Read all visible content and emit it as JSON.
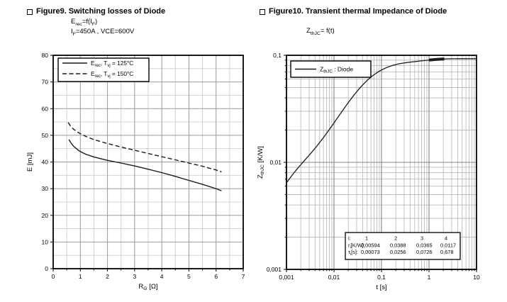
{
  "page": {
    "background": "#ffffff",
    "text_color": "#000000"
  },
  "figures": [
    {
      "title": "Figure9. Switching losses of Diode",
      "subtitles": [
        "E~rec~=f(I~F~)",
        "I~F~=450A , VCE=600V"
      ],
      "chart_data": {
        "type": "line",
        "xscale": "linear",
        "yscale": "linear",
        "xlabel": "R~G~ [Ω]",
        "ylabel": "E [mJ]",
        "xlim": [
          0,
          7
        ],
        "ylim": [
          0,
          80
        ],
        "x_major_step": 1,
        "x_minor_step": 0.5,
        "y_major_step": 10,
        "y_minor_step": 5,
        "x_tick_labels": [
          "0",
          "1",
          "2",
          "3",
          "4",
          "5",
          "6",
          "7"
        ],
        "y_tick_labels": [
          "0",
          "10",
          "20",
          "30",
          "40",
          "50",
          "60",
          "70",
          "80"
        ],
        "grid": "on",
        "legend_position": "top-left",
        "series": [
          {
            "name": "E~rec~, T~vj~ = 125°C",
            "line_style": "solid",
            "color": "#1a1a1a",
            "points": [
              [
                0.58,
                48.4
              ],
              [
                0.65,
                47.2
              ],
              [
                0.75,
                45.9
              ],
              [
                0.9,
                44.6
              ],
              [
                1.0,
                43.9
              ],
              [
                1.2,
                42.9
              ],
              [
                1.5,
                41.9
              ],
              [
                2.0,
                40.6
              ],
              [
                2.5,
                39.6
              ],
              [
                3.0,
                38.5
              ],
              [
                3.5,
                37.3
              ],
              [
                4.0,
                36.0
              ],
              [
                4.5,
                34.6
              ],
              [
                5.0,
                33.1
              ],
              [
                5.5,
                31.6
              ],
              [
                6.0,
                30.0
              ],
              [
                6.2,
                29.2
              ]
            ]
          },
          {
            "name": "E~rec~, T~vj~ = 150°C",
            "line_style": "dashed",
            "color": "#1a1a1a",
            "points": [
              [
                0.55,
                54.8
              ],
              [
                0.65,
                53.3
              ],
              [
                0.75,
                52.3
              ],
              [
                0.9,
                51.2
              ],
              [
                1.0,
                50.6
              ],
              [
                1.2,
                49.6
              ],
              [
                1.5,
                48.4
              ],
              [
                2.0,
                46.9
              ],
              [
                2.5,
                45.6
              ],
              [
                3.0,
                44.4
              ],
              [
                3.5,
                43.2
              ],
              [
                4.0,
                42.0
              ],
              [
                4.5,
                40.8
              ],
              [
                5.0,
                39.6
              ],
              [
                5.5,
                38.4
              ],
              [
                6.0,
                37.0
              ],
              [
                6.2,
                36.3
              ]
            ]
          }
        ]
      }
    },
    {
      "title": "Figure10. Transient thermal Impedance of Diode",
      "subtitles": [
        "Z~thJC~= f(t)"
      ],
      "chart_data": {
        "type": "line",
        "xscale": "log",
        "yscale": "log",
        "xlabel": "t [s]",
        "ylabel": "Z~thJC~ [K/W]",
        "xlim": [
          0.001,
          10
        ],
        "ylim": [
          0.001,
          0.1
        ],
        "x_tick_labels": [
          "0,001",
          "0,01",
          "0,1",
          "1",
          "10"
        ],
        "y_tick_labels": [
          "0,1",
          "0,01",
          "0,001"
        ],
        "grid": "on",
        "legend_position": "top-left",
        "series": [
          {
            "name": "Z~thJC~ : Diode",
            "line_style": "solid",
            "color": "#1a1a1a",
            "foster_model": {
              "r_K_per_W": [
                0.00594,
                0.0388,
                0.0365,
                0.0117
              ],
              "tau_s": [
                0.00073,
                0.0256,
                0.0726,
                0.678
              ]
            },
            "emphasis_segment_t": [
              1.0,
              2.1
            ]
          }
        ],
        "parameter_table": {
          "header_label": "i:",
          "headers": [
            "1",
            "2",
            "3",
            "4"
          ],
          "rows": [
            {
              "label": "r~i~[K/W]:",
              "values": [
                "0,00594",
                "0,0388",
                "0,0365",
                "0,0117"
              ]
            },
            {
              "label": "τ~i~[s]:",
              "values": [
                "0,00073",
                "0,0256",
                "0,0726",
                "0,678"
              ]
            }
          ]
        }
      }
    }
  ]
}
